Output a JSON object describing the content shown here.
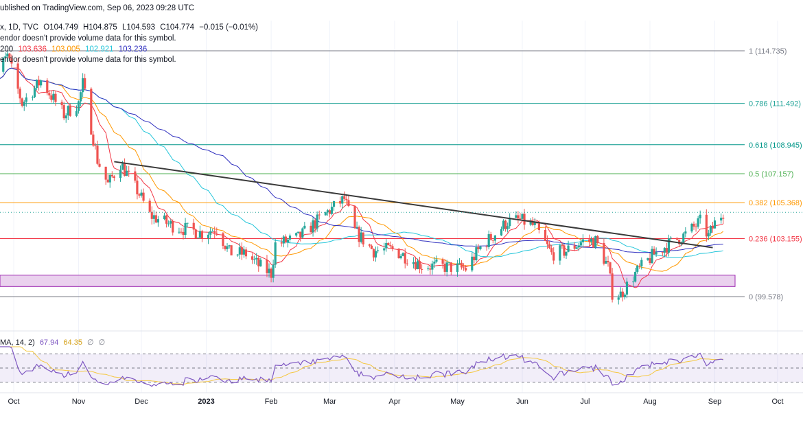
{
  "header": {
    "published": "ublished on TradingView.com, Sep 06, 2023 09:28 UTC",
    "symbol_line": "x, 1D, TVC",
    "ohlc": {
      "open": "O104.749",
      "high": "H104.875",
      "low": "L104.593",
      "close": "C104.774",
      "change": "−0.015 (−0.01%)"
    },
    "volume_note_1": "endor doesn't provide volume data for this symbol.",
    "ma_line": {
      "label": "200",
      "values": [
        "103.636",
        "103.005",
        "102.921",
        "103.236"
      ],
      "colors": [
        "#f23645",
        "#ff9800",
        "#26c6da",
        "#2f2fbf"
      ]
    },
    "volume_note_2": "endor doesn't provide volume data for this symbol."
  },
  "rsi_header": {
    "label": "MA, 14, 2)",
    "value": "67.94",
    "ma_value": "64.35",
    "empty_1": "∅",
    "empty_2": "∅"
  },
  "x_axis_labels": [
    "Oct",
    "Nov",
    "Dec",
    "2023",
    "Feb",
    "Mar",
    "Apr",
    "May",
    "Jun",
    "Jul",
    "Aug",
    "Sep",
    "Oct"
  ],
  "colors": {
    "up": "#26a69a",
    "down": "#ef5350",
    "ma_red": "#f23645",
    "ma_orange": "#ff9800",
    "ma_cyan": "#26c6da",
    "ma_blue": "#2f2fbf",
    "rsi_line": "#7e57c2",
    "rsi_ma": "#f5c842",
    "trendline": "#3a3a3a",
    "zone_fill": "#e1bee7",
    "zone_stroke": "#9c27b0"
  },
  "chart_data": {
    "type": "candlestick",
    "timeframe": "1D",
    "fibonacci": [
      {
        "ratio": "1",
        "price": 114.735,
        "label": "1 (114.735)",
        "color": "#787b86"
      },
      {
        "ratio": "0.786",
        "price": 111.492,
        "label": "0.786 (111.492)",
        "color": "#26a69a"
      },
      {
        "ratio": "0.618",
        "price": 108.945,
        "label": "0.618 (108.945)",
        "color": "#009688"
      },
      {
        "ratio": "0.5",
        "price": 107.157,
        "label": "0.5 (107.157)",
        "color": "#4caf50"
      },
      {
        "ratio": "0.382",
        "price": 105.368,
        "label": "0.382 (105.368)",
        "color": "#ff9800"
      },
      {
        "ratio": "0.236",
        "price": 103.155,
        "label": "0.236 (103.155)",
        "color": "#f23645"
      },
      {
        "ratio": "0",
        "price": 99.578,
        "label": "0 (99.578)",
        "color": "#787b86"
      }
    ],
    "support_zone": {
      "low": 100.2,
      "high": 100.9
    },
    "trendline": {
      "start": {
        "date": "2022-11-18",
        "price": 107.9
      },
      "end": {
        "date": "2023-08-31",
        "price": 102.6
      }
    },
    "candles_monthly_approx": [
      {
        "month": "2022-10",
        "open": 113.2,
        "close": 111.0
      },
      {
        "month": "2022-11",
        "open": 111.0,
        "close": 106.8
      },
      {
        "month": "2022-12",
        "open": 106.8,
        "close": 103.6
      },
      {
        "month": "2023-01",
        "open": 103.6,
        "close": 102.0
      },
      {
        "month": "2023-02",
        "open": 102.0,
        "close": 104.9
      },
      {
        "month": "2023-03",
        "open": 104.9,
        "close": 102.6
      },
      {
        "month": "2023-04",
        "open": 102.6,
        "close": 101.7
      },
      {
        "month": "2023-05",
        "open": 101.7,
        "close": 104.3
      },
      {
        "month": "2023-06",
        "open": 104.3,
        "close": 103.0
      },
      {
        "month": "2023-07",
        "open": 103.0,
        "close": 101.8
      },
      {
        "month": "2023-08",
        "open": 101.8,
        "close": 103.6
      },
      {
        "month": "2023-09",
        "open": 103.6,
        "close": 104.77
      }
    ],
    "rsi": {
      "period": 14,
      "value": 67.94,
      "ma": 64.35,
      "upper_band": 70,
      "lower_band": 30
    }
  }
}
